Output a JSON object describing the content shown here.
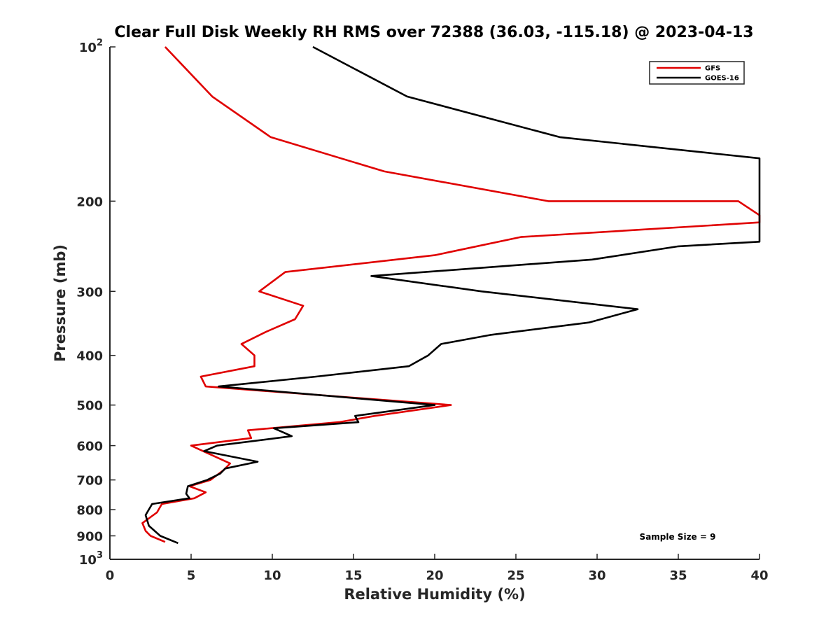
{
  "chart_data": {
    "type": "line",
    "title": "Clear Full Disk Weekly RH RMS over 72388 (36.03, -115.18) @ 2023-04-13",
    "xlabel": "Relative Humidity (%)",
    "ylabel": "Pressure (mb)",
    "xlim": [
      0,
      40
    ],
    "ylim": [
      100,
      1000
    ],
    "y_scale": "log",
    "y_reversed": true,
    "grid": false,
    "legend_position": "top-right",
    "x_ticks": [
      0,
      5,
      10,
      15,
      20,
      25,
      30,
      35,
      40
    ],
    "x_tick_labels": [
      "0",
      "5",
      "10",
      "15",
      "20",
      "25",
      "30",
      "35",
      "40"
    ],
    "y_ticks": [
      100,
      200,
      300,
      400,
      500,
      600,
      700,
      800,
      900,
      1000
    ],
    "y_tick_labels": [
      "10^2",
      "200",
      "300",
      "400",
      "500",
      "600",
      "700",
      "800",
      "900",
      "10^3"
    ],
    "annotation": "Sample Size = 9",
    "series": [
      {
        "name": "GFS",
        "color": "#e00000",
        "points": [
          [
            3.4,
            100
          ],
          [
            6.3,
            125
          ],
          [
            9.9,
            150
          ],
          [
            16.9,
            175
          ],
          [
            27.0,
            200
          ],
          [
            38.7,
            200
          ],
          [
            40.0,
            213
          ],
          [
            40.0,
            220
          ],
          [
            25.3,
            235
          ],
          [
            20.0,
            255
          ],
          [
            10.8,
            275
          ],
          [
            9.2,
            300
          ],
          [
            11.9,
            320
          ],
          [
            11.4,
            340
          ],
          [
            9.6,
            360
          ],
          [
            8.1,
            380
          ],
          [
            8.9,
            400
          ],
          [
            8.9,
            420
          ],
          [
            5.6,
            440
          ],
          [
            5.9,
            460
          ],
          [
            21.0,
            500
          ],
          [
            16.3,
            525
          ],
          [
            14.1,
            540
          ],
          [
            8.5,
            560
          ],
          [
            8.7,
            580
          ],
          [
            5.0,
            600
          ],
          [
            5.5,
            610
          ],
          [
            7.4,
            650
          ],
          [
            7.0,
            670
          ],
          [
            6.2,
            700
          ],
          [
            4.9,
            720
          ],
          [
            5.9,
            740
          ],
          [
            5.2,
            760
          ],
          [
            3.2,
            780
          ],
          [
            2.9,
            810
          ],
          [
            2.0,
            850
          ],
          [
            2.2,
            880
          ],
          [
            2.5,
            900
          ],
          [
            3.4,
            925
          ]
        ]
      },
      {
        "name": "GOES-16",
        "color": "#000000",
        "points": [
          [
            12.5,
            100
          ],
          [
            18.3,
            125
          ],
          [
            27.7,
            150
          ],
          [
            40.0,
            165
          ],
          [
            40.0,
            240
          ],
          [
            35.0,
            245
          ],
          [
            29.7,
            260
          ],
          [
            16.1,
            280
          ],
          [
            22.9,
            300
          ],
          [
            32.5,
            325
          ],
          [
            29.5,
            345
          ],
          [
            23.4,
            365
          ],
          [
            20.4,
            380
          ],
          [
            19.6,
            400
          ],
          [
            18.4,
            420
          ],
          [
            12.7,
            440
          ],
          [
            6.7,
            460
          ],
          [
            20.0,
            500
          ],
          [
            15.1,
            525
          ],
          [
            15.3,
            540
          ],
          [
            10.1,
            555
          ],
          [
            11.2,
            575
          ],
          [
            6.6,
            600
          ],
          [
            5.8,
            615
          ],
          [
            9.1,
            645
          ],
          [
            7.1,
            665
          ],
          [
            6.8,
            680
          ],
          [
            6.0,
            700
          ],
          [
            4.8,
            720
          ],
          [
            4.7,
            745
          ],
          [
            4.9,
            760
          ],
          [
            2.6,
            780
          ],
          [
            2.2,
            820
          ],
          [
            2.4,
            860
          ],
          [
            3.1,
            900
          ],
          [
            4.2,
            930
          ]
        ]
      }
    ]
  }
}
